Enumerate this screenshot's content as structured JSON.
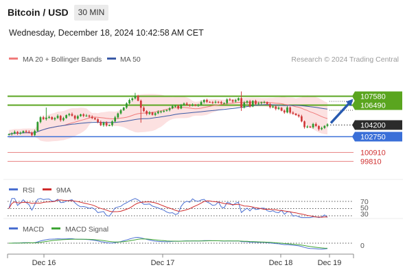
{
  "header": {
    "symbol": "Bitcoin / USD",
    "timeframe": "30 MIN",
    "datetime": "Wednesday, December 18, 2024 10:42:58 AM CET"
  },
  "colors": {
    "resistance": "#5aa51f",
    "pivot": "#3a6fd8",
    "support": "#e98686",
    "ma20": "#f07b7b",
    "bollinger_fill": "#fbd7d7",
    "ma50": "#3a5aa6",
    "candle_up": "#2e9a2e",
    "candle_down": "#d03a3a",
    "arrow": "#275ab0",
    "rsi": "#4a6fd1",
    "rsi_ma": "#d02b2b",
    "macd": "#4a6fd1",
    "macd_signal": "#3fa536"
  },
  "chart_data": [
    {
      "type": "candlestick",
      "title": "",
      "legend": [
        {
          "label": "MA 20 + Bollinger Bands",
          "color": "#f07b7b"
        },
        {
          "label": "MA 50",
          "color": "#3a5aa6"
        }
      ],
      "watermark": "Research © 2024 Trading Central",
      "ylim": [
        97800,
        110200
      ],
      "x_ticks": [
        "Dec 16",
        "Dec 17",
        "Dec 18",
        "Dec 19"
      ],
      "current_price": 104200,
      "levels": [
        {
          "value": 107580,
          "label": "107580",
          "role": "resistance"
        },
        {
          "value": 106490,
          "label": "106490",
          "role": "resistance"
        },
        {
          "value": 104200,
          "label": "104200",
          "role": "current"
        },
        {
          "value": 102750,
          "label": "102750",
          "role": "pivot"
        },
        {
          "value": 100910,
          "label": "100910",
          "role": "support"
        },
        {
          "value": 99810,
          "label": "99810",
          "role": "support"
        }
      ],
      "forecast_arrow": {
        "from": 104200,
        "to": 107580
      },
      "close": [
        103030,
        103120,
        103300,
        103110,
        103200,
        103400,
        103310,
        103230,
        102920,
        103420,
        104480,
        105050,
        104830,
        105000,
        105070,
        104800,
        104950,
        105210,
        104700,
        104950,
        105300,
        105430,
        105230,
        104890,
        105180,
        105390,
        105210,
        105250,
        105120,
        104950,
        104800,
        104480,
        104100,
        104420,
        104060,
        104110,
        104550,
        105030,
        105500,
        105880,
        106200,
        106700,
        107100,
        107300,
        107630,
        107020,
        106180,
        105780,
        105450,
        105620,
        105330,
        105520,
        105700,
        105740,
        105800,
        105900,
        106120,
        106380,
        106400,
        106090,
        106550,
        106680,
        106520,
        106480,
        106540,
        106440,
        106520,
        106860,
        107100,
        106880,
        106850,
        106780,
        106880,
        106860,
        106710,
        106740,
        107170,
        107080,
        106920,
        107070,
        107320,
        106200,
        106800,
        106960,
        106330,
        107000,
        106620,
        106720,
        106820,
        106850,
        106620,
        106250,
        106330,
        106050,
        106180,
        105830,
        105620,
        106220,
        105600,
        105470,
        105310,
        105160,
        104550,
        103870,
        103940,
        103840,
        104250,
        104000,
        103630,
        103770,
        104020,
        104200
      ]
    },
    {
      "type": "line",
      "legend": [
        {
          "label": "RSI",
          "color": "#4a6fd1"
        },
        {
          "label": "9MA",
          "color": "#d02b2b"
        }
      ],
      "y_ticks": [
        "70",
        "50",
        "30"
      ],
      "ylim": [
        0,
        100
      ]
    },
    {
      "type": "line",
      "legend": [
        {
          "label": "MACD",
          "color": "#4a6fd1"
        },
        {
          "label": "MACD Signal",
          "color": "#3fa536"
        }
      ],
      "y_ticks": [
        "0"
      ]
    }
  ]
}
